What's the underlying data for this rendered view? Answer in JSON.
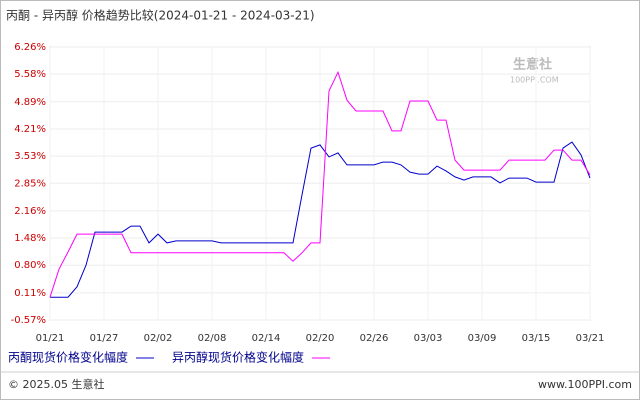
{
  "chart_data": {
    "type": "line",
    "title": "丙酮 - 异丙醇 价格趋势比较(2024-01-21 - 2024-03-21)",
    "categories": [
      "01/21",
      null,
      null,
      null,
      null,
      null,
      "01/27",
      null,
      null,
      null,
      null,
      null,
      "02/02",
      null,
      null,
      null,
      null,
      null,
      "02/08",
      null,
      null,
      null,
      null,
      null,
      "02/14",
      null,
      null,
      null,
      null,
      null,
      "02/20",
      null,
      null,
      null,
      null,
      null,
      "02/26",
      null,
      null,
      null,
      null,
      null,
      "03/03",
      null,
      null,
      null,
      null,
      null,
      "03/09",
      null,
      null,
      null,
      null,
      null,
      "03/15",
      null,
      null,
      null,
      null,
      null,
      "03/21"
    ],
    "series": [
      {
        "name": "丙酮现货价格变化幅度",
        "color": "#0000cc",
        "values": [
          0,
          0,
          0,
          0.26,
          0.8,
          1.63,
          1.63,
          1.63,
          1.63,
          1.78,
          1.78,
          1.36,
          1.58,
          1.36,
          1.41,
          1.41,
          1.41,
          1.41,
          1.41,
          1.36,
          1.36,
          1.36,
          1.36,
          1.36,
          1.36,
          1.36,
          1.36,
          1.36,
          2.56,
          3.73,
          3.81,
          3.51,
          3.61,
          3.31,
          3.31,
          3.31,
          3.31,
          3.38,
          3.38,
          3.31,
          3.13,
          3.08,
          3.08,
          3.28,
          3.16,
          3.01,
          2.93,
          3.01,
          3.01,
          3.01,
          2.86,
          2.98,
          2.98,
          2.98,
          2.88,
          2.88,
          2.88,
          3.73,
          3.88,
          3.56,
          2.98
        ]
      },
      {
        "name": "异丙醇现货价格变化幅度",
        "color": "#ff00ff",
        "values": [
          0,
          0.7,
          1.13,
          1.58,
          1.58,
          1.58,
          1.58,
          1.58,
          1.58,
          1.11,
          1.11,
          1.11,
          1.11,
          1.11,
          1.11,
          1.11,
          1.11,
          1.11,
          1.11,
          1.11,
          1.11,
          1.11,
          1.11,
          1.11,
          1.11,
          1.11,
          1.11,
          0.9,
          1.11,
          1.36,
          1.36,
          5.16,
          5.63,
          4.93,
          4.66,
          4.66,
          4.66,
          4.66,
          4.16,
          4.16,
          4.91,
          4.91,
          4.91,
          4.43,
          4.43,
          3.43,
          3.18,
          3.18,
          3.18,
          3.18,
          3.18,
          3.43,
          3.43,
          3.43,
          3.43,
          3.43,
          3.68,
          3.68,
          3.43,
          3.43,
          3.06
        ]
      }
    ],
    "ylim": [
      -0.57,
      6.26
    ],
    "yticks": [
      {
        "value": 6.26,
        "label": "6.26%"
      },
      {
        "value": 5.58,
        "label": "5.58%"
      },
      {
        "value": 4.89,
        "label": "4.89%"
      },
      {
        "value": 4.21,
        "label": "4.21%"
      },
      {
        "value": 3.53,
        "label": "3.53%"
      },
      {
        "value": 2.85,
        "label": "2.85%"
      },
      {
        "value": 2.16,
        "label": "2.16%"
      },
      {
        "value": 1.48,
        "label": "1.48%"
      },
      {
        "value": 0.8,
        "label": "0.80%"
      },
      {
        "value": 0.11,
        "label": "0.11%"
      },
      {
        "value": -0.57,
        "label": "-0.57%"
      }
    ],
    "grid": true,
    "watermark": "生意社",
    "watermark_url": "100PPI.COM",
    "footer_left": "© 2025.05 生意社",
    "footer_right": "www.100PPI.com"
  }
}
